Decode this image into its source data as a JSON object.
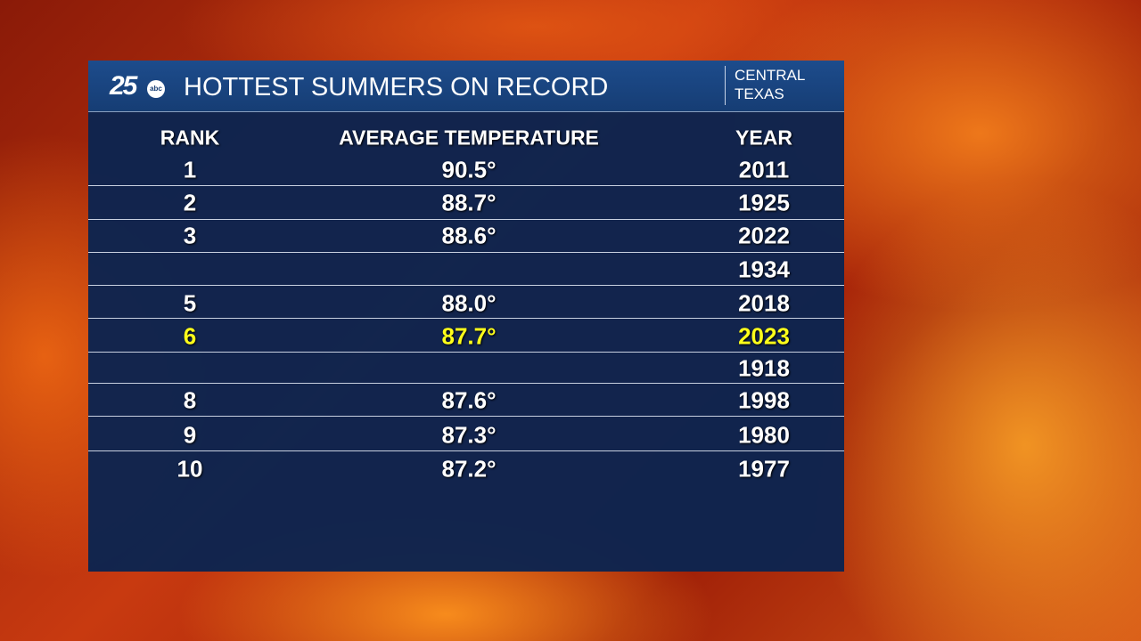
{
  "header": {
    "logo": {
      "number": "25",
      "network": "abc"
    },
    "title": "HOTTEST SUMMERS ON RECORD",
    "region": [
      "CENTRAL",
      "TEXAS"
    ]
  },
  "table": {
    "columns": [
      "RANK",
      "AVERAGE TEMPERATURE",
      "YEAR"
    ],
    "rows": [
      {
        "rank": "1",
        "temp": "90.5°",
        "year": "2011"
      },
      {
        "rank": "2",
        "temp": "88.7°",
        "year": "1925"
      },
      {
        "rank": "3",
        "temp": "88.6°",
        "year": "2022"
      },
      {
        "year": "1934"
      },
      {
        "rank": "5",
        "temp": "88.0°",
        "year": "2018"
      },
      {
        "rank": "6",
        "temp": "87.7°",
        "year": "2023"
      },
      {
        "year": "1918"
      },
      {
        "rank": "8",
        "temp": "87.6°",
        "year": "1998"
      },
      {
        "rank": "9",
        "temp": "87.3°",
        "year": "1980"
      },
      {
        "rank": "10",
        "temp": "87.2°",
        "year": "1977"
      }
    ],
    "highlight_row": 5,
    "highlight_color": "#ffff1a"
  }
}
